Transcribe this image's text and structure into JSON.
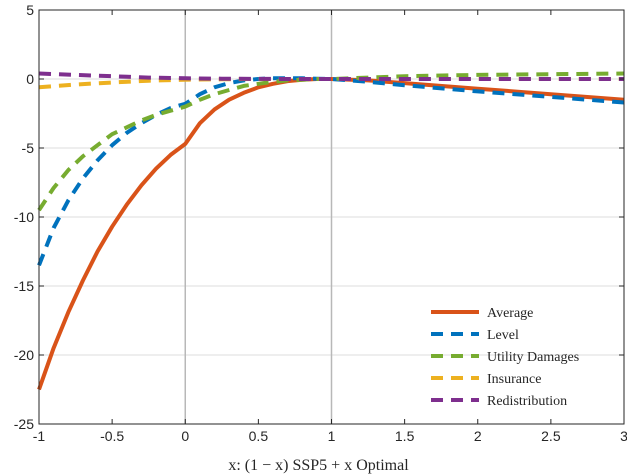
{
  "chart_data": {
    "type": "line",
    "title": "",
    "xlabel": "x: (1 − x) SSP5 + x Optimal",
    "ylabel": "",
    "xlim": [
      -1,
      3
    ],
    "ylim": [
      -25,
      5
    ],
    "xticks": [
      -1,
      -0.5,
      0,
      0.5,
      1,
      1.5,
      2,
      2.5,
      3
    ],
    "yticks": [
      -25,
      -20,
      -15,
      -10,
      -5,
      0,
      5
    ],
    "xtick_labels": [
      "-1",
      "-0.5",
      "0",
      "0.5",
      "1",
      "1.5",
      "2",
      "2.5",
      "3"
    ],
    "ytick_labels": [
      "-25",
      "-20",
      "-15",
      "-10",
      "-5",
      "0",
      "5"
    ],
    "grid": "y-major",
    "vertical_reference_lines": [
      0,
      1
    ],
    "legend_position": "bottom-right",
    "series": [
      {
        "name": "Average",
        "color": "#D95319",
        "style": "solid",
        "x": [
          -1,
          -0.9,
          -0.8,
          -0.7,
          -0.6,
          -0.5,
          -0.4,
          -0.3,
          -0.2,
          -0.1,
          0,
          0.1,
          0.2,
          0.3,
          0.4,
          0.5,
          0.6,
          0.7,
          0.8,
          0.9,
          1,
          1.25,
          1.5,
          2,
          2.5,
          3
        ],
        "y": [
          -22.5,
          -19.5,
          -16.9,
          -14.6,
          -12.5,
          -10.7,
          -9.1,
          -7.7,
          -6.5,
          -5.5,
          -4.7,
          -3.2,
          -2.2,
          -1.5,
          -1.0,
          -0.6,
          -0.35,
          -0.15,
          -0.05,
          0,
          0,
          -0.1,
          -0.3,
          -0.7,
          -1.1,
          -1.5
        ]
      },
      {
        "name": "Level",
        "color": "#0072BD",
        "style": "dashed",
        "x": [
          -1,
          -0.9,
          -0.8,
          -0.7,
          -0.6,
          -0.5,
          -0.4,
          -0.3,
          -0.2,
          -0.1,
          0,
          0.1,
          0.2,
          0.3,
          0.4,
          0.5,
          0.6,
          0.7,
          0.8,
          0.9,
          1,
          1.25,
          1.5,
          2,
          2.5,
          3
        ],
        "y": [
          -13.5,
          -10.8,
          -8.8,
          -7.2,
          -5.9,
          -4.8,
          -3.9,
          -3.2,
          -2.6,
          -2.1,
          -1.8,
          -1.1,
          -0.6,
          -0.3,
          -0.1,
          0,
          0.05,
          0.05,
          0.05,
          0.02,
          0,
          -0.2,
          -0.45,
          -0.9,
          -1.3,
          -1.7
        ]
      },
      {
        "name": "Utility Damages",
        "color": "#77AC30",
        "style": "dashed",
        "x": [
          -1,
          -0.9,
          -0.8,
          -0.7,
          -0.6,
          -0.5,
          -0.4,
          -0.3,
          -0.2,
          -0.1,
          0,
          0.1,
          0.2,
          0.3,
          0.4,
          0.5,
          0.6,
          0.7,
          0.8,
          0.9,
          1,
          1.25,
          1.5,
          2,
          2.5,
          3
        ],
        "y": [
          -9.5,
          -7.9,
          -6.6,
          -5.6,
          -4.8,
          -4.0,
          -3.5,
          -3.0,
          -2.6,
          -2.3,
          -2.0,
          -1.5,
          -1.1,
          -0.8,
          -0.5,
          -0.35,
          -0.2,
          -0.1,
          -0.05,
          0,
          0,
          0.1,
          0.2,
          0.3,
          0.35,
          0.4
        ]
      },
      {
        "name": "Insurance",
        "color": "#EDB120",
        "style": "dashed",
        "x": [
          -1,
          -0.75,
          -0.5,
          -0.25,
          0,
          0.25,
          0.5,
          0.75,
          1,
          1.5,
          2,
          2.5,
          3
        ],
        "y": [
          -0.6,
          -0.4,
          -0.25,
          -0.12,
          -0.05,
          -0.02,
          0,
          0,
          0,
          0,
          0,
          0,
          0
        ]
      },
      {
        "name": "Redistribution",
        "color": "#7E2F8E",
        "style": "dashed",
        "x": [
          -1,
          -0.75,
          -0.5,
          -0.25,
          0,
          0.25,
          0.5,
          0.75,
          1,
          1.5,
          2,
          2.5,
          3
        ],
        "y": [
          0.4,
          0.3,
          0.2,
          0.1,
          0.05,
          0.02,
          0.01,
          0,
          0,
          0,
          0,
          0,
          0
        ]
      }
    ]
  }
}
